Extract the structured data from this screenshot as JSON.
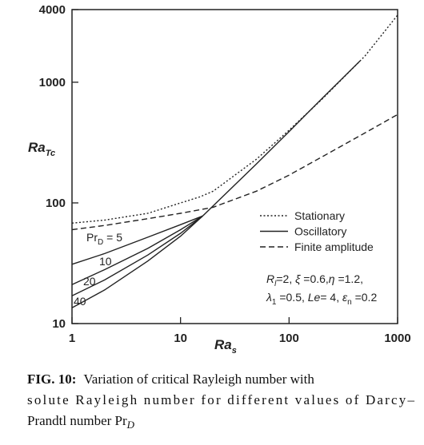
{
  "chart_data": {
    "type": "line",
    "x_label": [
      "Ra",
      "s"
    ],
    "y_label": [
      "Ra",
      "Tc"
    ],
    "xlim": [
      1,
      1000
    ],
    "ylim": [
      10,
      4000
    ],
    "log_x": true,
    "log_y": true,
    "xticks": [
      1,
      10,
      100,
      1000
    ],
    "yticks": [
      10,
      100,
      1000,
      4000
    ],
    "series": [
      {
        "name": "Stationary",
        "color": "#222222",
        "dash": "dotted",
        "x": [
          1,
          2,
          5,
          10,
          15,
          20,
          50,
          100,
          200,
          500,
          1000
        ],
        "values": [
          68,
          72,
          82,
          100,
          112,
          125,
          230,
          400,
          720,
          1650,
          3600
        ]
      },
      {
        "name": "Oscillatory",
        "color": "#222222",
        "dash": "solid",
        "x": [
          16,
          50,
          100,
          200,
          450
        ],
        "values": [
          78,
          210,
          390,
          730,
          1500
        ]
      },
      {
        "name": "Finite amplitude",
        "color": "#222222",
        "dash": "dashed",
        "x": [
          1,
          2,
          5,
          10,
          20,
          50,
          100,
          200,
          500,
          1000
        ],
        "values": [
          60,
          65,
          74,
          82,
          92,
          125,
          170,
          240,
          380,
          540
        ]
      }
    ],
    "curves": [
      {
        "label": [
          "Pr",
          "D",
          " = 5"
        ],
        "x": [
          1,
          2,
          5,
          10,
          16
        ],
        "values": [
          31,
          38,
          52,
          66,
          78
        ]
      },
      {
        "label": [
          "10"
        ],
        "x": [
          1,
          2,
          5,
          10,
          16
        ],
        "values": [
          21,
          28,
          42,
          60,
          78
        ]
      },
      {
        "label": [
          "20"
        ],
        "x": [
          1,
          2,
          5,
          10,
          16
        ],
        "values": [
          17,
          23,
          37,
          56,
          78
        ]
      },
      {
        "label": [
          "40"
        ],
        "x": [
          1,
          2,
          5,
          10,
          16
        ],
        "values": [
          13.5,
          19,
          33,
          53,
          78
        ]
      }
    ],
    "annotation": {
      "line1": [
        "R",
        "l",
        "=2, ",
        "ξ",
        " =0.6,",
        "η",
        " =1.2,"
      ],
      "line2": [
        "λ",
        "1",
        " =0.5, ",
        "Le",
        "= 4, ",
        "ε",
        "n",
        " =0.2"
      ]
    }
  },
  "caption": {
    "label": "FIG. 10:",
    "lines": [
      "Variation of critical Rayleigh number with",
      "solute Rayleigh number for different values of Darcy–",
      "Prandtl number Pr"
    ],
    "sub": "D"
  }
}
